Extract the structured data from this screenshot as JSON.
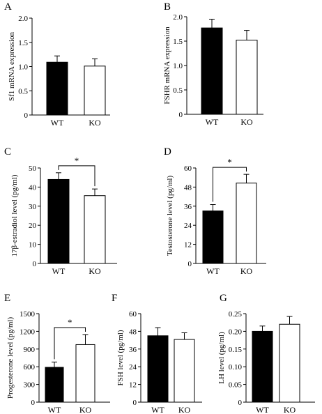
{
  "figure": {
    "colors": {
      "WT": "#000000",
      "KO": "#ffffff",
      "stroke": "#000000"
    }
  },
  "chart_data": [
    {
      "panel": "A",
      "type": "bar",
      "categories": [
        "WT",
        "KO"
      ],
      "values": [
        1.09,
        1.01
      ],
      "errors": [
        0.13,
        0.15
      ],
      "ylabel": "Sf1 mRNA expression",
      "ylim": [
        0,
        2.0
      ],
      "yticks": [
        "0",
        "0.5",
        "1.0",
        "1.5",
        "2.0"
      ],
      "significance": null
    },
    {
      "panel": "B",
      "type": "bar",
      "categories": [
        "WT",
        "KO"
      ],
      "values": [
        1.77,
        1.52
      ],
      "errors": [
        0.18,
        0.2
      ],
      "ylabel": "FSHR mRNA expression",
      "ylim": [
        0,
        2.0
      ],
      "yticks": [
        "0",
        "0.5",
        "1.0",
        "1.5",
        "2.0"
      ],
      "significance": null
    },
    {
      "panel": "C",
      "type": "bar",
      "categories": [
        "WT",
        "KO"
      ],
      "values": [
        44,
        35.5
      ],
      "errors": [
        3.5,
        3.5
      ],
      "ylabel": "17β-estradiol level (pg/ml)",
      "ylim": [
        0,
        50
      ],
      "yticks": [
        "0",
        "10",
        "20",
        "30",
        "40",
        "50"
      ],
      "significance": "*"
    },
    {
      "panel": "D",
      "type": "bar",
      "categories": [
        "WT",
        "KO"
      ],
      "values": [
        33,
        50.5
      ],
      "errors": [
        4,
        5.5
      ],
      "ylabel": "Testosterone level (pg/ml)",
      "ylim": [
        0,
        60
      ],
      "yticks": [
        "0",
        "12",
        "24",
        "36",
        "48",
        "60"
      ],
      "significance": "*"
    },
    {
      "panel": "E",
      "type": "bar",
      "categories": [
        "WT",
        "KO"
      ],
      "values": [
        590,
        975
      ],
      "errors": [
        90,
        170
      ],
      "ylabel": "Progesterone level (pg/ml)",
      "ylim": [
        0,
        1500
      ],
      "yticks": [
        "0",
        "300",
        "600",
        "900",
        "1200",
        "1500"
      ],
      "significance": "*"
    },
    {
      "panel": "F",
      "type": "bar",
      "categories": [
        "WT",
        "KO"
      ],
      "values": [
        45,
        42.5
      ],
      "errors": [
        5.5,
        4.5
      ],
      "ylabel": "FSH level (pg/ml)",
      "ylim": [
        0,
        60
      ],
      "yticks": [
        "0",
        "12",
        "24",
        "36",
        "48",
        "60"
      ],
      "significance": null
    },
    {
      "panel": "G",
      "type": "bar",
      "categories": [
        "WT",
        "KO"
      ],
      "values": [
        0.2,
        0.22
      ],
      "errors": [
        0.015,
        0.022
      ],
      "ylabel": "LH level (pg/ml)",
      "ylim": [
        0,
        0.25
      ],
      "yticks": [
        "0",
        "0.05",
        "0.10",
        "0.15",
        "0.20",
        "0.25"
      ],
      "significance": null
    }
  ]
}
